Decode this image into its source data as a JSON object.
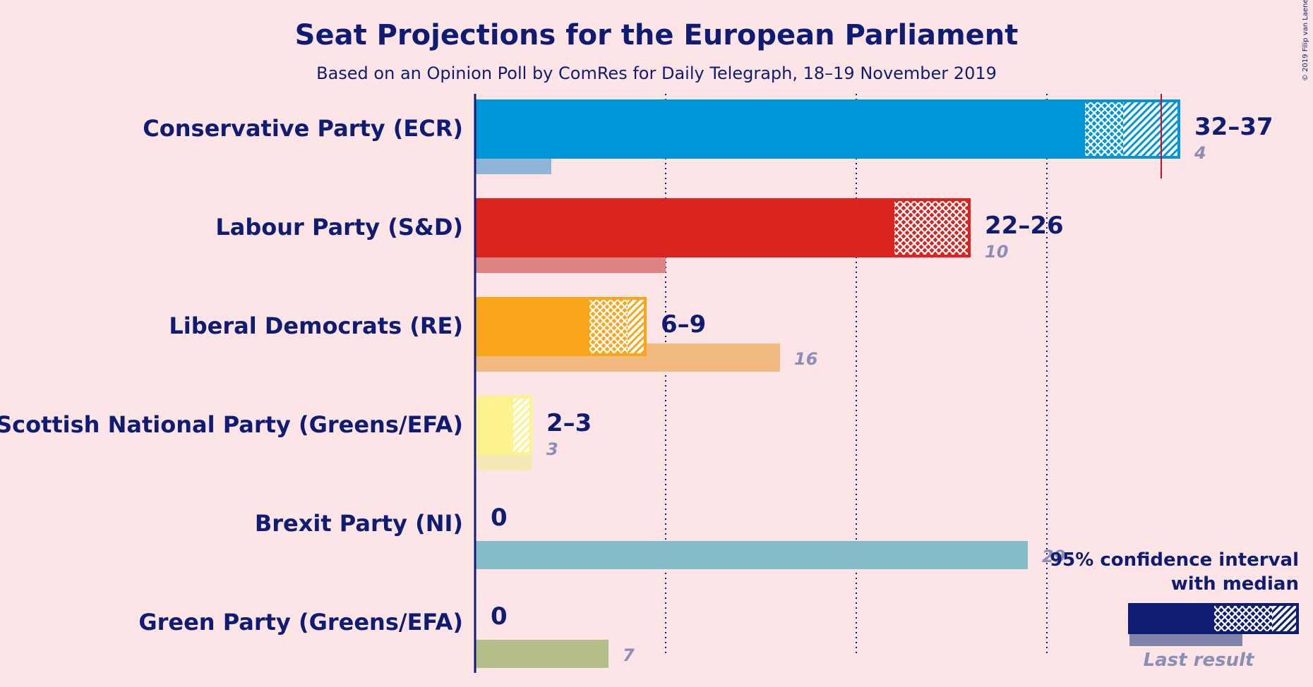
{
  "chart_data": {
    "type": "bar",
    "title": "Seat Projections for the European Parliament",
    "subtitle": "Based on an Opinion Poll by ComRes for Daily Telegraph, 18–19 November 2019",
    "copyright": "© 2019 Filip van Laenen",
    "majority_marker": 36,
    "gridlines": [
      10,
      20,
      30
    ],
    "parties": [
      {
        "name": "Conservative Party (ECR)",
        "color": "#0096da",
        "lastColor": "#8eb4d6",
        "low": 32,
        "median": 34,
        "high": 37,
        "range_label": "32–37",
        "last": 4,
        "last_label": "4"
      },
      {
        "name": "Labour Party (S&D)",
        "color": "#dc241f",
        "lastColor": "#de8282",
        "low": 22,
        "median": 26,
        "high": 26,
        "range_label": "22–26",
        "last": 10,
        "last_label": "10"
      },
      {
        "name": "Liberal Democrats (RE)",
        "color": "#faa61a",
        "lastColor": "#f1bb80",
        "low": 6,
        "median": 8,
        "high": 9,
        "range_label": "6–9",
        "last": 16,
        "last_label": "16"
      },
      {
        "name": "Scottish National Party (Greens/EFA)",
        "color": "#fdf38e",
        "lastColor": "#f8e8b8",
        "low": 2,
        "median": 2,
        "high": 3,
        "range_label": "2–3",
        "last": 3,
        "last_label": "3"
      },
      {
        "name": "Brexit Party (NI)",
        "color": "#12b6cf",
        "lastColor": "#84bdc8",
        "low": 0,
        "median": 0,
        "high": 0,
        "range_label": "0",
        "last": 29,
        "last_label": "29"
      },
      {
        "name": "Green Party (Greens/EFA)",
        "color": "#6ab023",
        "lastColor": "#b3be89",
        "low": 0,
        "median": 0,
        "high": 0,
        "range_label": "0",
        "last": 7,
        "last_label": "7"
      }
    ],
    "legend": {
      "line1": "95% confidence interval",
      "line2": "with median",
      "last": "Last result",
      "color": "#0e1d73",
      "lastColor": "#8084a8"
    }
  }
}
